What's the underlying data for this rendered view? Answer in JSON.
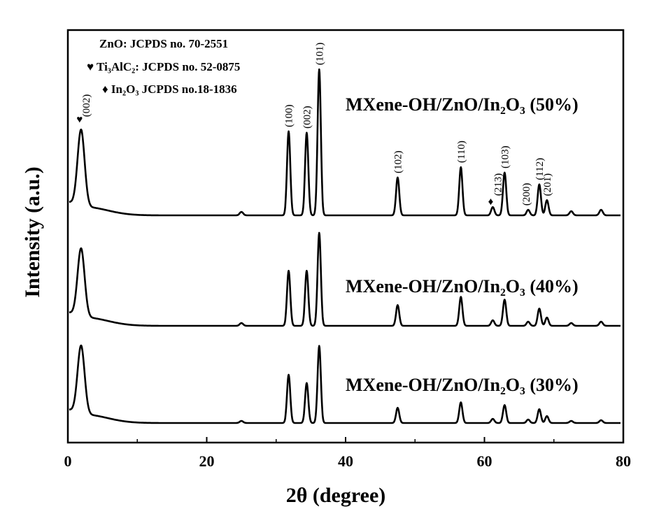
{
  "chart_data": {
    "type": "line",
    "xlabel": "2θ (degree)",
    "ylabel": "Intensity (a.u.)",
    "xlim": [
      0,
      80
    ],
    "x_ticks": [
      "0",
      "20",
      "40",
      "60",
      "80"
    ],
    "y_ticks_labeled": false,
    "grid": false,
    "legend": {
      "placement": "top-left",
      "lines": [
        {
          "marker": "",
          "text": "ZnO: JCPDS no. 70-2551"
        },
        {
          "marker": "♥",
          "text": "Ti₃AlC₂: JCPDS no. 52-0875"
        },
        {
          "marker": "♦",
          "text": "In₂O₃ JCPDS no.18-1836"
        }
      ]
    },
    "peaks": [
      {
        "x": 1.9,
        "label": "(002)",
        "phase": "Ti3AlC2"
      },
      {
        "x": 31.8,
        "label": "(100)",
        "phase": "ZnO"
      },
      {
        "x": 34.4,
        "label": "(002)",
        "phase": "ZnO"
      },
      {
        "x": 36.2,
        "label": "(101)",
        "phase": "ZnO"
      },
      {
        "x": 47.5,
        "label": "(102)",
        "phase": "ZnO"
      },
      {
        "x": 56.6,
        "label": "(110)",
        "phase": "ZnO"
      },
      {
        "x": 61.2,
        "label": "(213)",
        "phase": "In2O3"
      },
      {
        "x": 62.9,
        "label": "(103)",
        "phase": "ZnO"
      },
      {
        "x": 66.3,
        "label": "(200)",
        "phase": "ZnO"
      },
      {
        "x": 67.9,
        "label": "(112)",
        "phase": "ZnO"
      },
      {
        "x": 69.0,
        "label": "(201)",
        "phase": "ZnO"
      }
    ],
    "series": [
      {
        "name": "MXene-OH/ZnO/In₂O₃ (50%)",
        "peak_heights": [
          112,
          122,
          120,
          212,
          55,
          70,
          12,
          62,
          8,
          45,
          22
        ],
        "extra_small_peaks": [
          [
            25.0,
            5
          ],
          [
            72.5,
            6
          ],
          [
            76.8,
            8
          ]
        ]
      },
      {
        "name": "MXene-OH/ZnO/In₂O₃ (40%)",
        "peak_heights": [
          100,
          80,
          80,
          135,
          30,
          42,
          8,
          38,
          6,
          25,
          12
        ],
        "extra_small_peaks": [
          [
            25.0,
            4
          ],
          [
            72.5,
            4
          ],
          [
            76.8,
            6
          ]
        ]
      },
      {
        "name": "MXene-OH/ZnO/In₂O₃ (30%)",
        "peak_heights": [
          100,
          70,
          58,
          112,
          22,
          30,
          6,
          26,
          5,
          20,
          10
        ],
        "extra_small_peaks": [
          [
            25.0,
            3
          ],
          [
            72.5,
            3
          ],
          [
            76.8,
            4
          ]
        ]
      }
    ]
  }
}
